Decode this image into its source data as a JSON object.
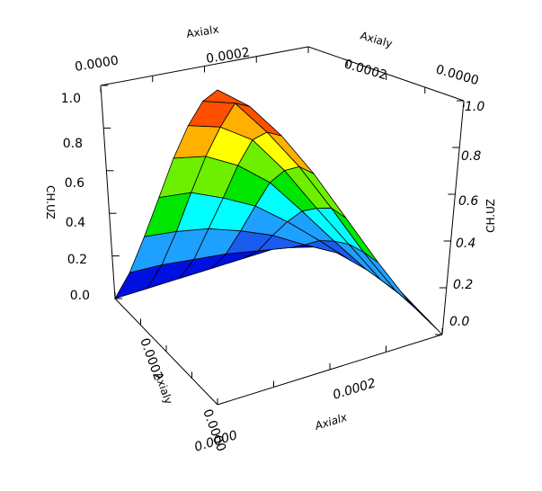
{
  "chart_data": {
    "type": "surface",
    "axes": {
      "x": {
        "label": "Axialx",
        "top_ticks": [
          "0.0000",
          "0.0002"
        ],
        "bottom_ticks": [
          "0.0002",
          "0.0000"
        ]
      },
      "y": {
        "label": "Axialy",
        "top_ticks": [
          "0.0002",
          "0.0000"
        ],
        "left_ticks": [
          "0.0002",
          "0.0000"
        ]
      },
      "z": {
        "label": "CH.UZ",
        "left_ticks": [
          "0.0",
          "0.2",
          "0.4",
          "0.6",
          "0.8",
          "1.0"
        ],
        "right_ticks": [
          "0.0",
          "0.2",
          "0.4",
          "0.6",
          "0.8",
          "1.0"
        ],
        "zlim": [
          0,
          1
        ]
      }
    },
    "x": [
      0,
      4e-05,
      8e-05,
      0.00012,
      0.00016,
      0.0002,
      0.00024,
      0.00028
    ],
    "y": [
      0,
      4e-05,
      8e-05,
      0.00012,
      0.00016,
      0.0002,
      0.00024,
      0.00028
    ],
    "z": [
      [
        1.0,
        0.96,
        0.87,
        0.74,
        0.57,
        0.38,
        0.18,
        0.0
      ],
      [
        0.96,
        0.92,
        0.83,
        0.71,
        0.55,
        0.36,
        0.17,
        0.0
      ],
      [
        0.87,
        0.83,
        0.75,
        0.64,
        0.49,
        0.33,
        0.15,
        0.0
      ],
      [
        0.74,
        0.71,
        0.64,
        0.54,
        0.42,
        0.28,
        0.13,
        0.0
      ],
      [
        0.57,
        0.55,
        0.49,
        0.42,
        0.32,
        0.22,
        0.1,
        0.0
      ],
      [
        0.38,
        0.36,
        0.33,
        0.28,
        0.22,
        0.14,
        0.07,
        0.0
      ],
      [
        0.18,
        0.17,
        0.15,
        0.13,
        0.1,
        0.07,
        0.03,
        0.0
      ],
      [
        0.0,
        0.0,
        0.0,
        0.0,
        0.0,
        0.0,
        0.0,
        0.0
      ]
    ],
    "colormap": [
      "#0010e0",
      "#1a5cf0",
      "#1ea0ff",
      "#00ffff",
      "#00e600",
      "#6cf000",
      "#ffff00",
      "#ffb000",
      "#ff5000"
    ],
    "grid": false
  }
}
